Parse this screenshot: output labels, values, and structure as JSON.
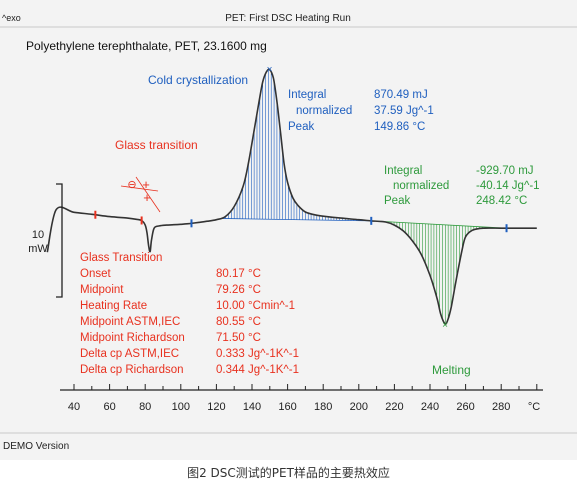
{
  "header": {
    "exo_label": "^exo",
    "run_title": "PET: First DSC Heating Run"
  },
  "sample_title": "Polyethylene terephthalate, PET, 23.1600 mg",
  "footer": {
    "demo_label": "DEMO Version",
    "caption": "图2 DSC测试的PET样品的主要热效应"
  },
  "colors": {
    "curve": "#333333",
    "glass": "#e8311f",
    "cold": "#1f5fbf",
    "melt": "#2e9a3c",
    "axis": "#222222",
    "background": "#f3f3f3"
  },
  "chart_data": {
    "type": "line",
    "title": "PET: First DSC Heating Run",
    "xlabel": "°C",
    "ylabel": "",
    "xlim": [
      32,
      304
    ],
    "xticks": [
      40,
      60,
      80,
      100,
      120,
      140,
      160,
      180,
      200,
      220,
      240,
      260,
      280
    ],
    "x_unit_label": "°C",
    "scale_bar": {
      "label_value": "10",
      "label_unit": "mW"
    },
    "series": [
      {
        "name": "",
        "x": [
          25,
          30,
          40,
          50,
          60,
          70,
          75,
          78,
          80,
          81,
          82,
          82.8,
          83.5,
          85,
          88,
          92,
          96,
          100,
          105,
          110,
          115,
          120,
          125,
          130,
          135,
          138,
          141,
          144,
          146,
          148,
          149.86,
          152,
          154,
          156,
          158,
          160,
          163,
          166,
          170,
          175,
          180,
          190,
          200,
          207,
          215,
          220,
          225,
          230,
          235,
          240,
          244,
          246,
          248.42,
          250,
          252,
          254,
          256,
          258,
          260,
          264,
          270,
          280,
          290,
          300
        ],
        "y": [
          -10,
          1.0,
          0.3,
          -0.2,
          -0.8,
          -1.2,
          -1.5,
          -1.8,
          -3.0,
          -5.0,
          -8.6,
          -9.8,
          -7.0,
          -3.8,
          -3.2,
          -3.0,
          -2.9,
          -2.8,
          -2.6,
          -2.3,
          -2.0,
          -1.6,
          -0.8,
          1.8,
          7.0,
          13.0,
          21.0,
          29.0,
          34.0,
          36.5,
          37.2,
          35.0,
          29.0,
          21.0,
          13.0,
          8.0,
          4.0,
          2.0,
          0.4,
          -0.3,
          -0.7,
          -1.2,
          -1.6,
          -1.9,
          -2.2,
          -3.0,
          -4.5,
          -7.0,
          -10.5,
          -16.0,
          -22.0,
          -26.0,
          -28.5,
          -27.5,
          -24.0,
          -19.0,
          -14.0,
          -9.5,
          -6.0,
          -4.3,
          -3.8,
          -3.8,
          -3.8,
          -3.8
        ]
      }
    ],
    "glass_transition": {
      "label": "Glass transition",
      "details_title": "Glass Transition",
      "details": [
        {
          "label": "Onset",
          "value": "80.17 °C"
        },
        {
          "label": "Midpoint",
          "value": "79.26 °C"
        },
        {
          "label": "Heating Rate",
          "value": "10.00 °Cmin^-1"
        },
        {
          "label": "Midpoint ASTM,IEC",
          "value": "80.55 °C"
        },
        {
          "label": "Midpoint Richardson",
          "value": "71.50 °C"
        },
        {
          "label": "Delta cp ASTM,IEC",
          "value": "0.333 Jg^-1K^-1"
        },
        {
          "label": "Delta cp Richardson",
          "value": "0.344 Jg^-1K^-1"
        }
      ],
      "markers_x": [
        52,
        78,
        106
      ]
    },
    "cold_crystallization": {
      "label": "Cold crystallization",
      "integral_range": [
        122,
        207
      ],
      "peak_x": 149.86,
      "results": [
        {
          "label": "Integral",
          "value": "870.49 mJ"
        },
        {
          "label": "normalized",
          "value": "37.59 Jg^-1"
        },
        {
          "label": "Peak",
          "value": "149.86 °C"
        }
      ]
    },
    "melting": {
      "label": "Melting",
      "integral_range": [
        207,
        283
      ],
      "peak_x": 248.42,
      "results": [
        {
          "label": "Integral",
          "value": "-929.70 mJ"
        },
        {
          "label": "normalized",
          "value": "-40.14 Jg^-1"
        },
        {
          "label": "Peak",
          "value": "248.42 °C"
        }
      ],
      "markers_x": [
        207,
        283
      ]
    }
  }
}
